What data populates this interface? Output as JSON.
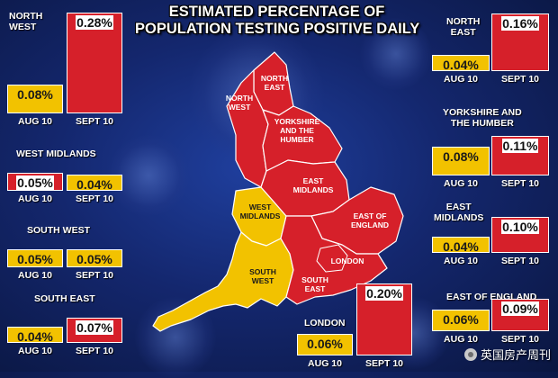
{
  "title": {
    "line1": "ESTIMATED PERCENTAGE OF",
    "line2": "POPULATION TESTING POSITIVE DAILY"
  },
  "watermark": "英国房产周刊",
  "colors": {
    "background": "#14276e",
    "red": "#d6202a",
    "yellow": "#f2c200",
    "border": "#ffffff"
  },
  "map": {
    "labels": [
      {
        "id": "north-east",
        "lines": [
          "NORTH",
          "EAST"
        ]
      },
      {
        "id": "north-west",
        "lines": [
          "NORTH",
          "WEST"
        ]
      },
      {
        "id": "yorkshire",
        "lines": [
          "YORKSHIRE",
          "AND THE",
          "HUMBER"
        ]
      },
      {
        "id": "east-midlands",
        "lines": [
          "EAST",
          "MIDLANDS"
        ]
      },
      {
        "id": "west-midlands",
        "lines": [
          "WEST",
          "MIDLANDS"
        ]
      },
      {
        "id": "east-of-england",
        "lines": [
          "EAST OF",
          "ENGLAND"
        ]
      },
      {
        "id": "london",
        "lines": [
          "LONDON"
        ]
      },
      {
        "id": "south-west",
        "lines": [
          "SOUTH",
          "WEST"
        ]
      },
      {
        "id": "south-east",
        "lines": [
          "SOUTH",
          "EAST"
        ]
      }
    ]
  },
  "chart_data": {
    "type": "bar",
    "title": "ESTIMATED PERCENTAGE OF POPULATION TESTING POSITIVE DAILY",
    "categories": [
      "AUG 10",
      "SEPT 10"
    ],
    "unit": "%",
    "regions": [
      {
        "name": "NORTH WEST",
        "values": [
          0.08,
          0.28
        ],
        "labels": [
          "0.08%",
          "0.28%"
        ],
        "colors": [
          "yellow",
          "red"
        ]
      },
      {
        "name": "WEST MIDLANDS",
        "values": [
          0.05,
          0.04
        ],
        "labels": [
          "0.05%",
          "0.04%"
        ],
        "colors": [
          "red",
          "yellow"
        ]
      },
      {
        "name": "SOUTH WEST",
        "values": [
          0.05,
          0.05
        ],
        "labels": [
          "0.05%",
          "0.05%"
        ],
        "colors": [
          "yellow",
          "yellow"
        ]
      },
      {
        "name": "SOUTH EAST",
        "values": [
          0.04,
          0.07
        ],
        "labels": [
          "0.04%",
          "0.07%"
        ],
        "colors": [
          "yellow",
          "red"
        ]
      },
      {
        "name": "LONDON",
        "values": [
          0.06,
          0.2
        ],
        "labels": [
          "0.06%",
          "0.20%"
        ],
        "colors": [
          "yellow",
          "red"
        ]
      },
      {
        "name": "NORTH EAST",
        "values": [
          0.04,
          0.16
        ],
        "labels": [
          "0.04%",
          "0.16%"
        ],
        "colors": [
          "yellow",
          "red"
        ]
      },
      {
        "name": "YORKSHIRE AND THE HUMBER",
        "values": [
          0.08,
          0.11
        ],
        "labels": [
          "0.08%",
          "0.11%"
        ],
        "colors": [
          "yellow",
          "red"
        ]
      },
      {
        "name": "EAST MIDLANDS",
        "values": [
          0.04,
          0.1
        ],
        "labels": [
          "0.04%",
          "0.10%"
        ],
        "colors": [
          "yellow",
          "red"
        ]
      },
      {
        "name": "EAST OF ENGLAND",
        "values": [
          0.06,
          0.09
        ],
        "labels": [
          "0.06%",
          "0.09%"
        ],
        "colors": [
          "yellow",
          "red"
        ]
      }
    ]
  }
}
